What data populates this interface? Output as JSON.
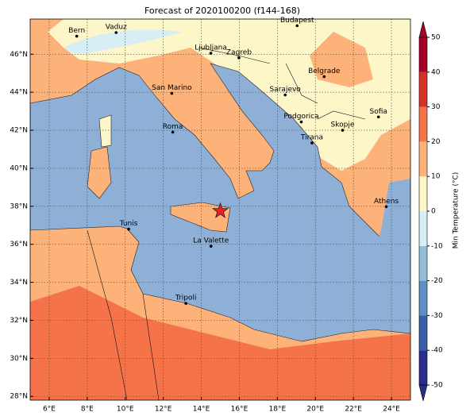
{
  "title": "Forecast of 2020100200 (f144-168)",
  "xlim": [
    5,
    25
  ],
  "ylim": [
    27.8,
    47.85
  ],
  "xticks": [
    {
      "value": 6,
      "label": "6°E"
    },
    {
      "value": 8,
      "label": "8°E"
    },
    {
      "value": 10,
      "label": "10°E"
    },
    {
      "value": 12,
      "label": "12°E"
    },
    {
      "value": 14,
      "label": "14°E"
    },
    {
      "value": 16,
      "label": "16°E"
    },
    {
      "value": 18,
      "label": "18°E"
    },
    {
      "value": 20,
      "label": "20°E"
    },
    {
      "value": 22,
      "label": "22°E"
    },
    {
      "value": 24,
      "label": "24°E"
    }
  ],
  "yticks": [
    {
      "value": 28,
      "label": "28°N"
    },
    {
      "value": 30,
      "label": "30°N"
    },
    {
      "value": 32,
      "label": "32°N"
    },
    {
      "value": 34,
      "label": "34°N"
    },
    {
      "value": 36,
      "label": "36°N"
    },
    {
      "value": 38,
      "label": "38°N"
    },
    {
      "value": 40,
      "label": "40°N"
    },
    {
      "value": 42,
      "label": "42°N"
    },
    {
      "value": 44,
      "label": "44°N"
    },
    {
      "value": 46,
      "label": "46°N"
    }
  ],
  "cities": [
    {
      "name": "Bern",
      "lon": 7.45,
      "lat": 46.95
    },
    {
      "name": "Vaduz",
      "lon": 9.52,
      "lat": 47.14
    },
    {
      "name": "Budapest",
      "lon": 19.04,
      "lat": 47.5
    },
    {
      "name": "Ljubljana",
      "lon": 14.5,
      "lat": 46.05
    },
    {
      "name": "Zagreb",
      "lon": 15.98,
      "lat": 45.81
    },
    {
      "name": "Belgrade",
      "lon": 20.46,
      "lat": 44.82
    },
    {
      "name": "San Marino",
      "lon": 12.45,
      "lat": 43.94
    },
    {
      "name": "Sarajevo",
      "lon": 18.41,
      "lat": 43.86
    },
    {
      "name": "Sofia",
      "lon": 23.32,
      "lat": 42.7
    },
    {
      "name": "Podgorica",
      "lon": 19.26,
      "lat": 42.44
    },
    {
      "name": "Skopje",
      "lon": 21.43,
      "lat": 42.0
    },
    {
      "name": "Roma",
      "lon": 12.5,
      "lat": 41.9
    },
    {
      "name": "Tirana",
      "lon": 19.82,
      "lat": 41.33
    },
    {
      "name": "Athens",
      "lon": 23.73,
      "lat": 37.98
    },
    {
      "name": "Tunis",
      "lon": 10.18,
      "lat": 36.8
    },
    {
      "name": "La Valette",
      "lon": 14.51,
      "lat": 35.9
    },
    {
      "name": "Tripoli",
      "lon": 13.19,
      "lat": 32.89
    }
  ],
  "marker": {
    "lon": 15.0,
    "lat": 37.75,
    "color": "#e8202a"
  },
  "colorbar": {
    "label": "Min Temperature (°C)",
    "ticks": [
      -50,
      -40,
      -30,
      -20,
      -10,
      0,
      10,
      20,
      30,
      40,
      50
    ],
    "colors": [
      "#2b2d8e",
      "#3a5ea8",
      "#5f8fc4",
      "#93bcd9",
      "#d8eef5",
      "#fdf6c8",
      "#fdb27a",
      "#f47348",
      "#d6322a",
      "#a50026"
    ]
  }
}
